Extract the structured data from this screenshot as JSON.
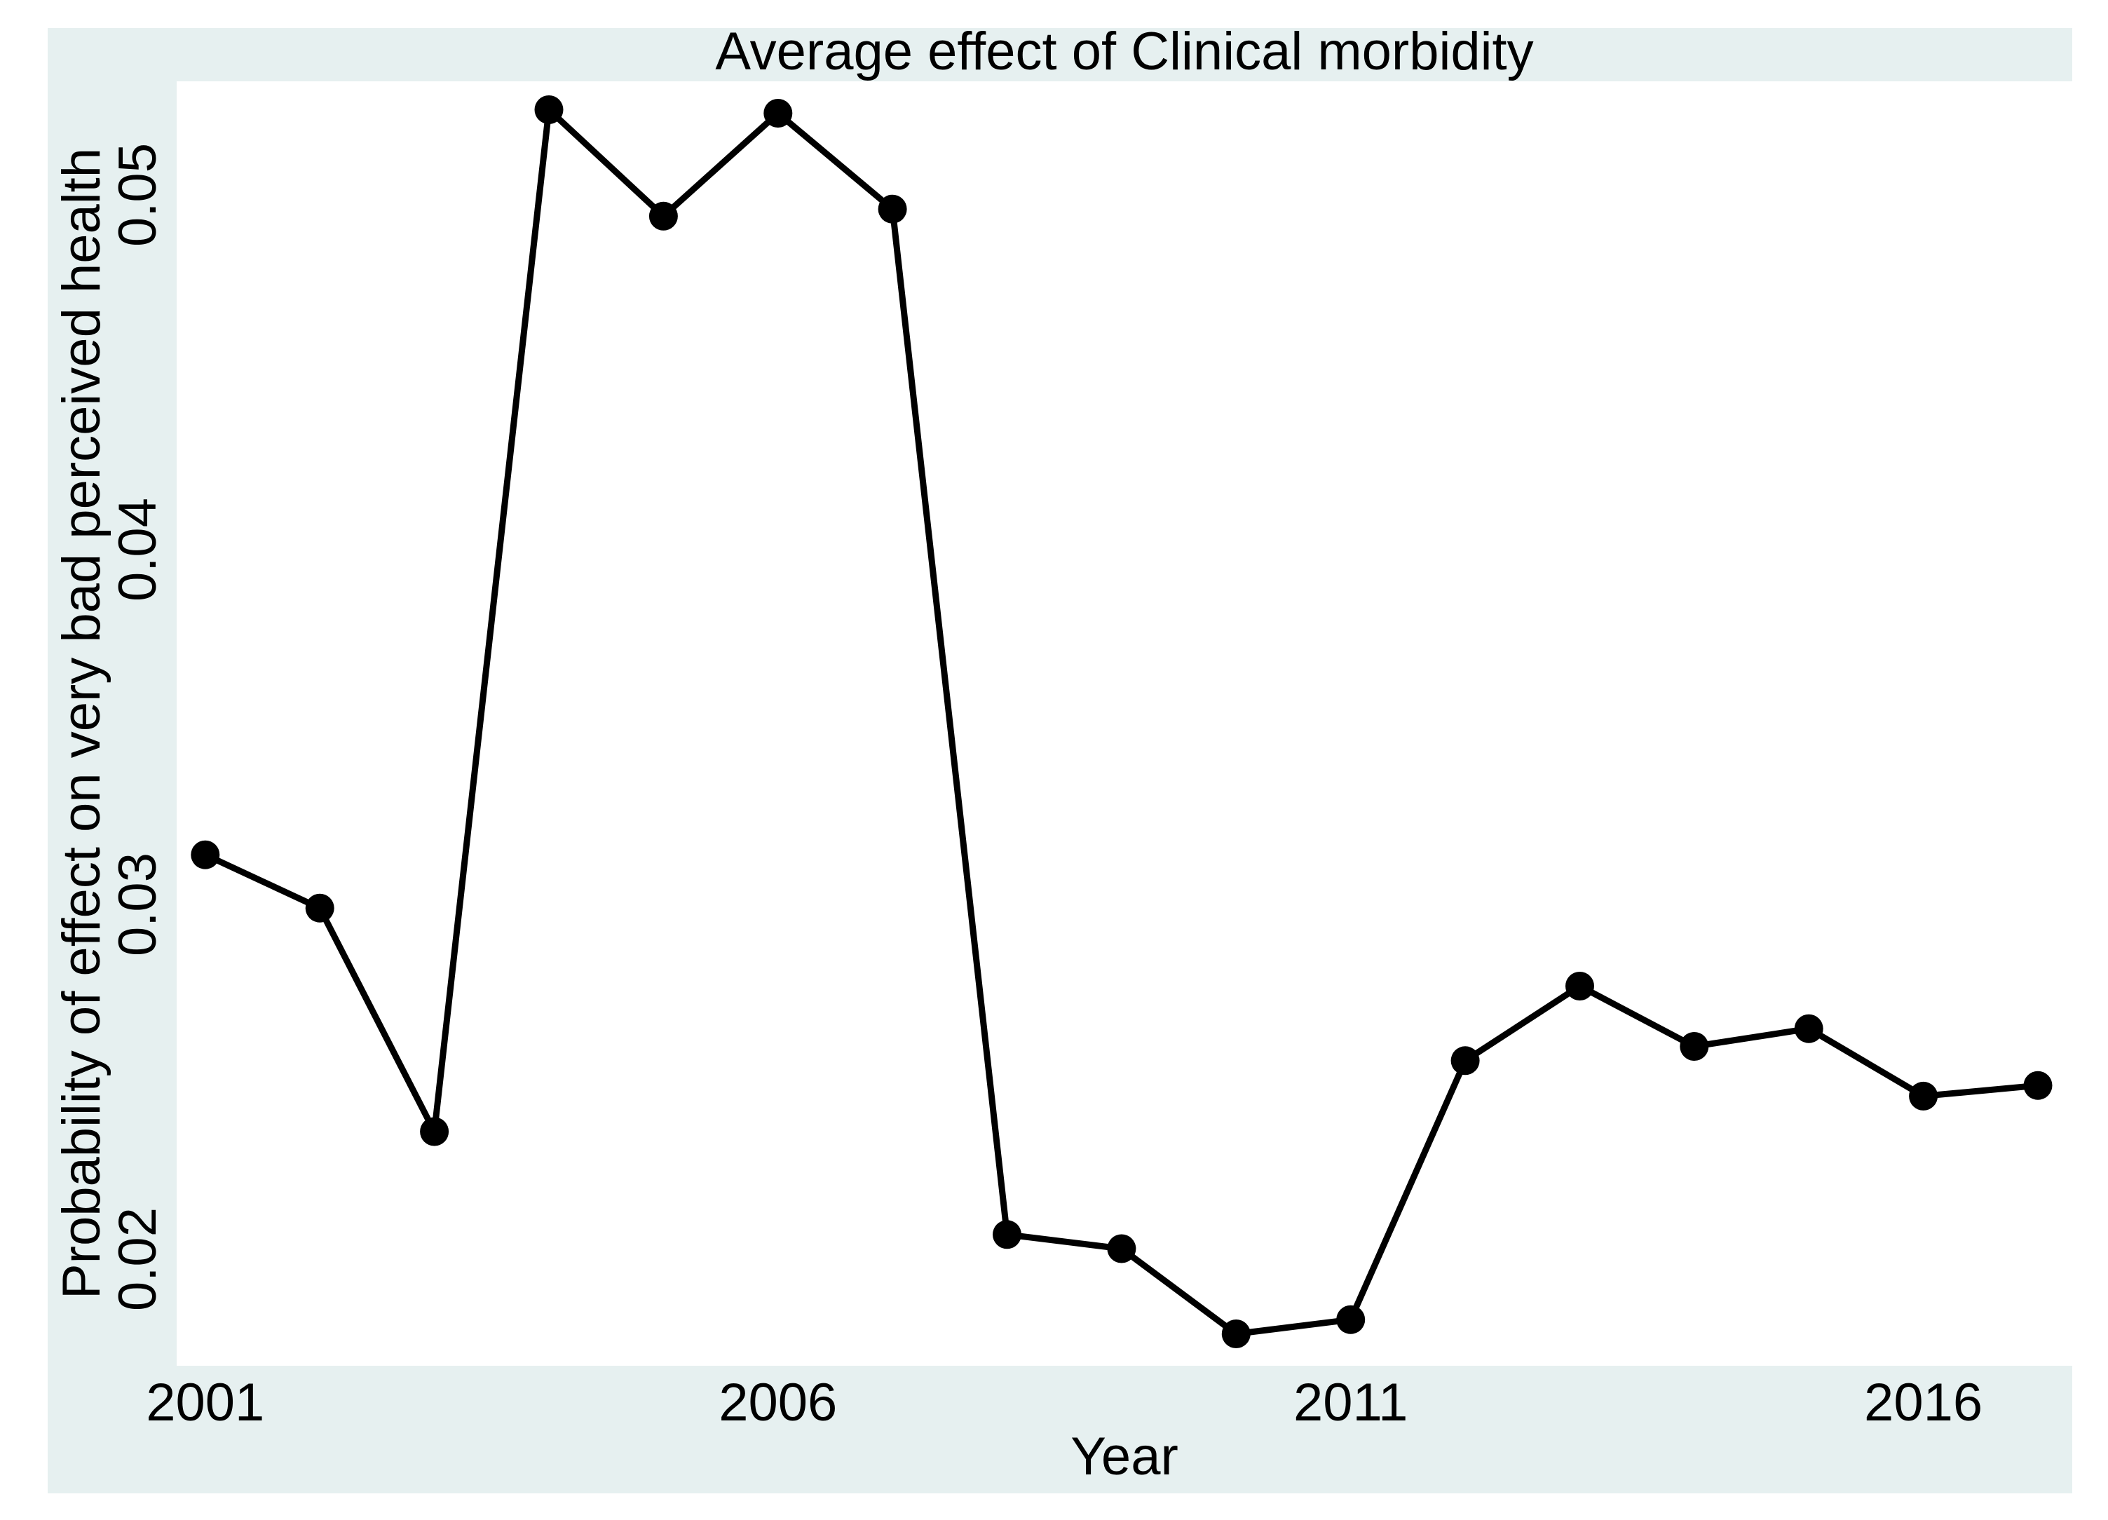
{
  "chart_data": {
    "type": "line",
    "title": "Average effect of Clinical morbidity",
    "xlabel": "Year",
    "ylabel": "Probability of effect on very bad perceived health",
    "x": [
      2001,
      2002,
      2003,
      2004,
      2005,
      2006,
      2007,
      2008,
      2009,
      2010,
      2011,
      2012,
      2013,
      2014,
      2015,
      2016,
      2017
    ],
    "values": [
      0.0314,
      0.0299,
      0.0236,
      0.0524,
      0.0494,
      0.0523,
      0.0496,
      0.0207,
      0.0203,
      0.0179,
      0.0183,
      0.0256,
      0.0277,
      0.026,
      0.0265,
      0.0246,
      0.0249
    ],
    "x_ticks": [
      2001,
      2006,
      2011,
      2016
    ],
    "x_tick_labels": [
      "2001",
      "2006",
      "2011",
      "2016"
    ],
    "y_ticks": [
      0.02,
      0.03,
      0.04,
      0.05
    ],
    "y_tick_labels": [
      "0.02",
      "0.03",
      "0.04",
      "0.05"
    ],
    "xlim": [
      2000.75,
      2017.3
    ],
    "ylim": [
      0.017,
      0.0532
    ],
    "grid": false,
    "legend_position": "none",
    "marker": "filled-circle",
    "line_shape": "straight",
    "colors": {
      "line": "#000000",
      "marker": "#000000",
      "text": "#000000",
      "plot_background": "#ffffff",
      "graph_background": "#e6f0f0",
      "page_background": "#ffffff"
    }
  }
}
